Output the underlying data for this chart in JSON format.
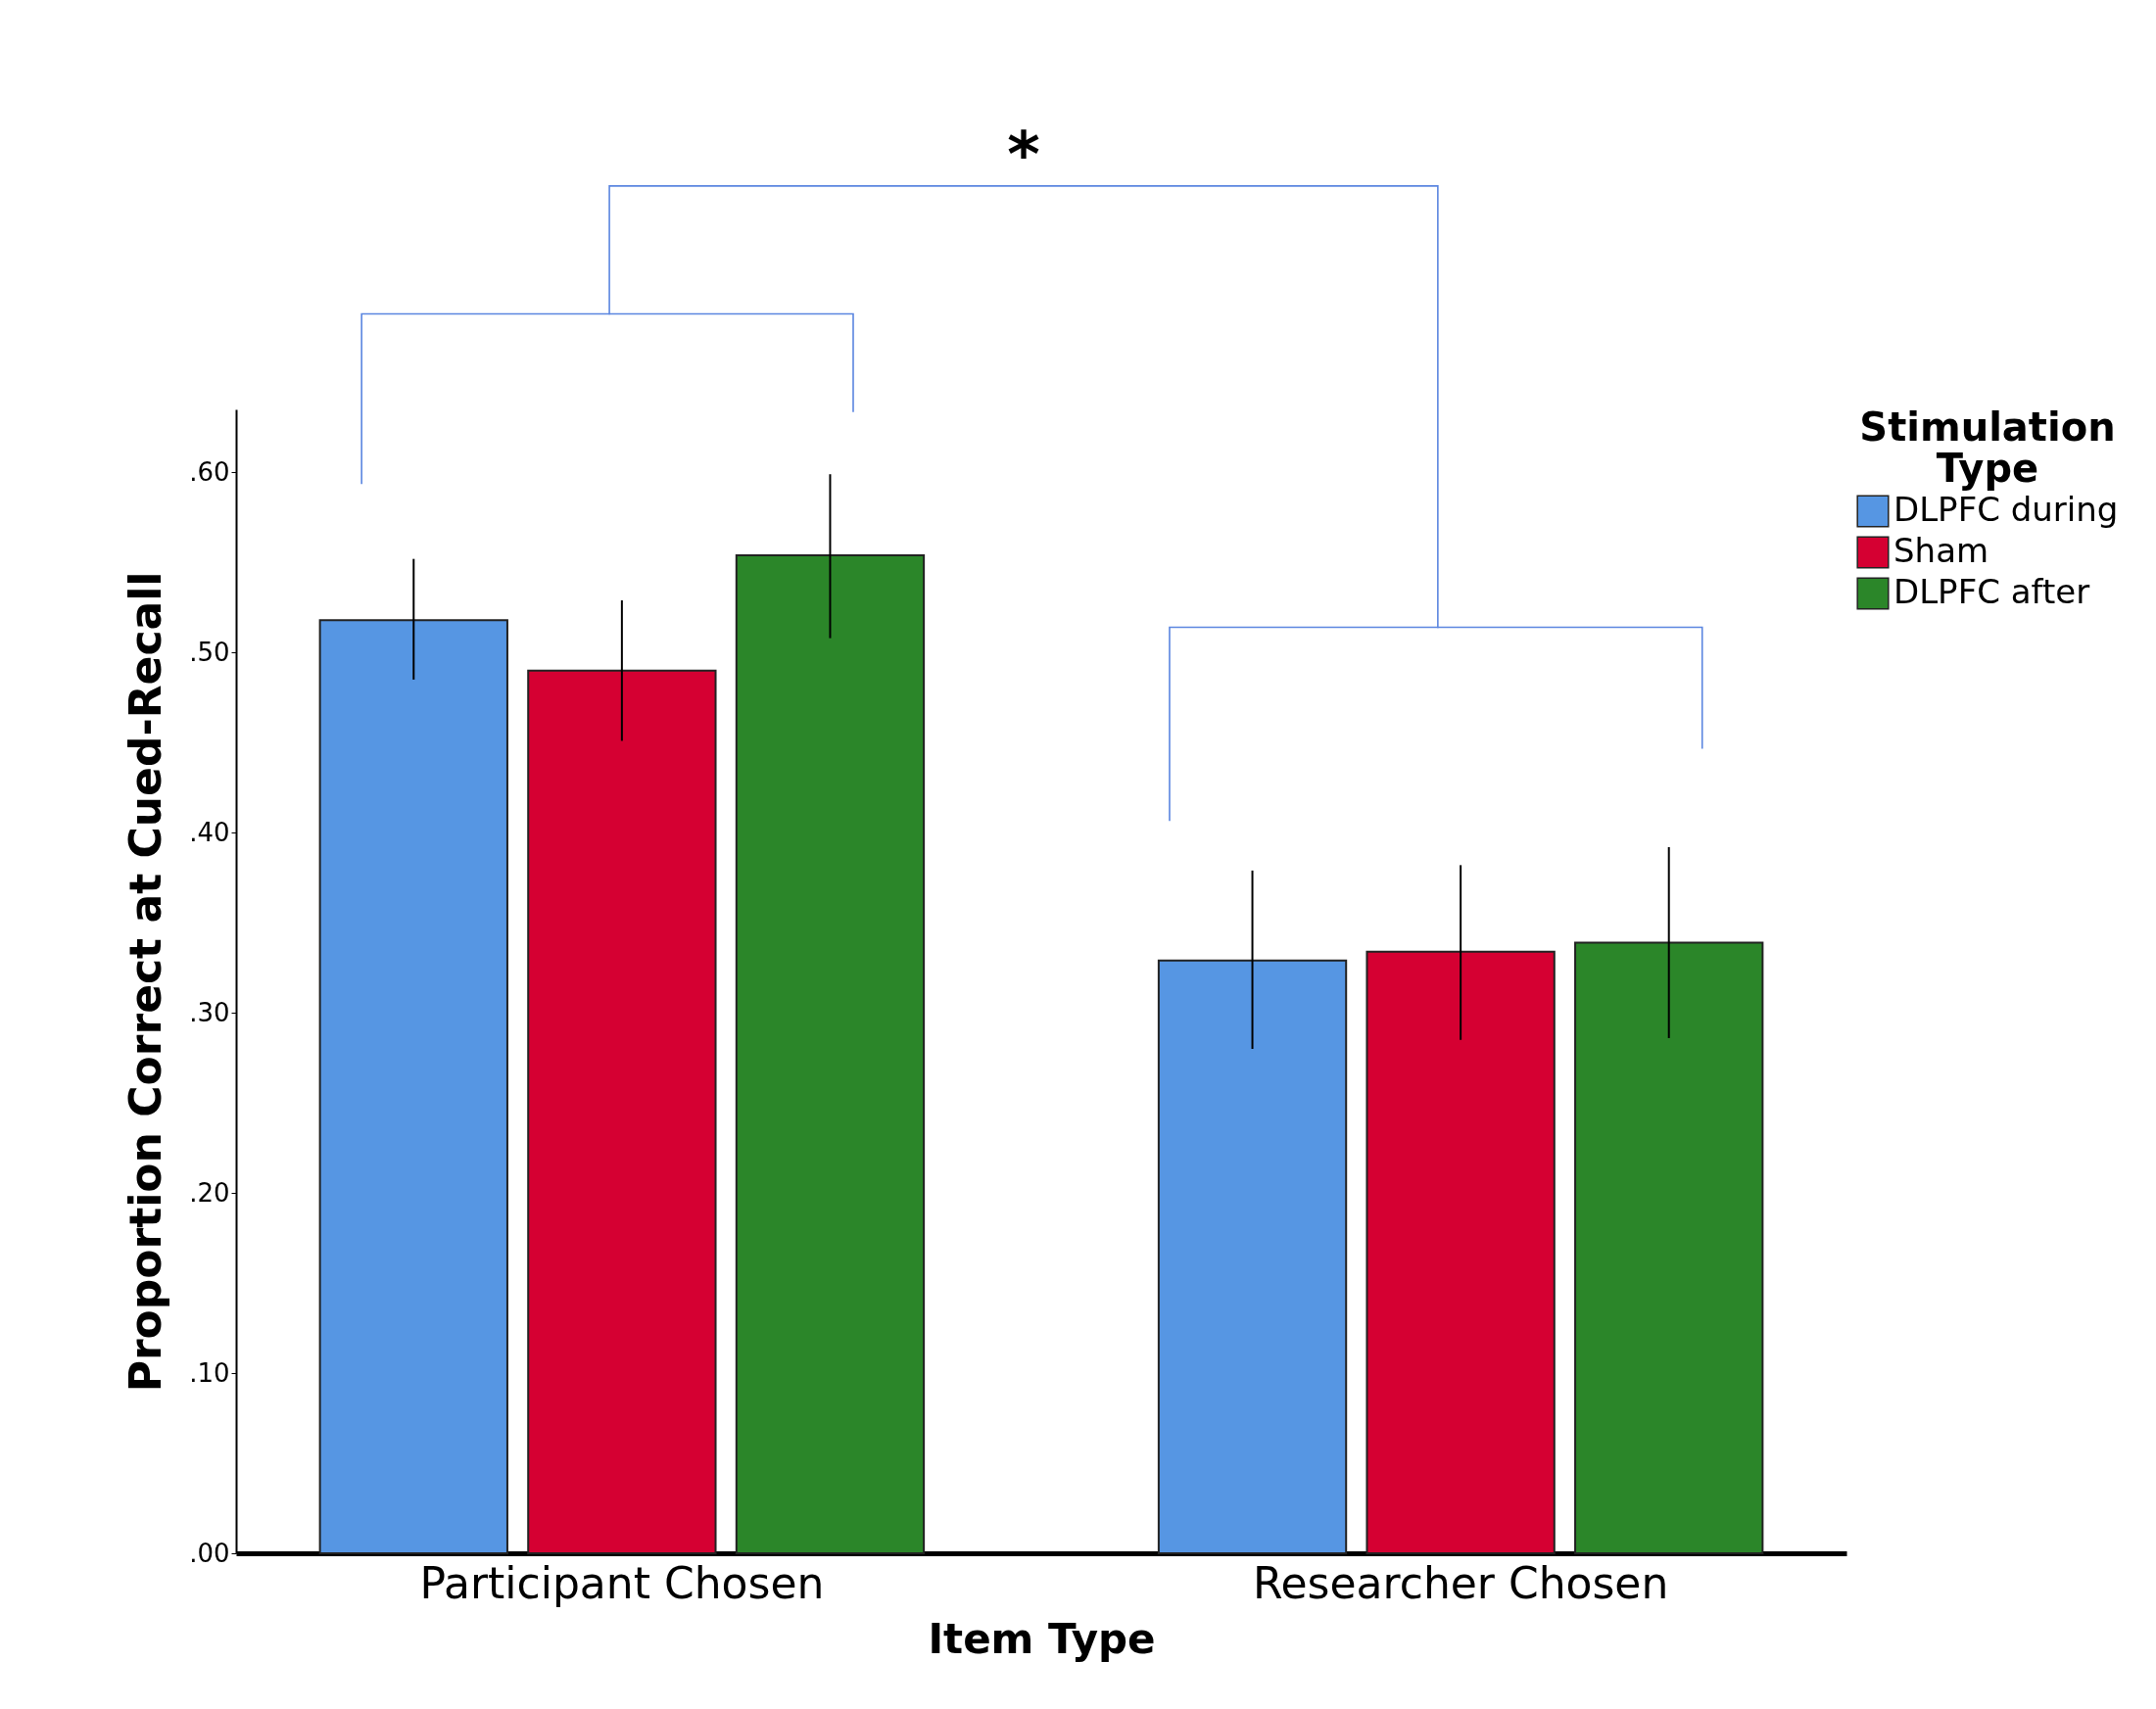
{
  "chart_data": {
    "type": "bar",
    "xlabel": "Item Type",
    "ylabel": "Proportion Correct at Cued-Recall",
    "legend_title": "Stimulation Type",
    "categories": [
      "Participant Chosen",
      "Researcher Chosen"
    ],
    "series": [
      {
        "name": "DLPFC during",
        "color": "#5696e3",
        "values": [
          0.518,
          0.329
        ],
        "errors": [
          [
            0.485,
            0.552
          ],
          [
            0.28,
            0.379
          ]
        ]
      },
      {
        "name": "Sham",
        "color": "#d50032",
        "values": [
          0.49,
          0.334
        ],
        "errors": [
          [
            0.451,
            0.529
          ],
          [
            0.285,
            0.382
          ]
        ]
      },
      {
        "name": "DLPFC after",
        "color": "#2b8629",
        "values": [
          0.554,
          0.339
        ],
        "errors": [
          [
            0.508,
            0.599
          ],
          [
            0.286,
            0.392
          ]
        ]
      }
    ],
    "ylim": [
      0,
      0.635
    ],
    "yticks": [
      {
        "value": 0,
        "label": ".00"
      },
      {
        "value": 0.1,
        "label": ".10"
      },
      {
        "value": 0.2,
        "label": ".20"
      },
      {
        "value": 0.3,
        "label": ".30"
      },
      {
        "value": 0.4,
        "label": ".40"
      },
      {
        "value": 0.5,
        "label": ".50"
      },
      {
        "value": 0.6,
        "label": ".60"
      }
    ],
    "grid": false,
    "legend": "top right",
    "annotations": [
      "*"
    ]
  }
}
